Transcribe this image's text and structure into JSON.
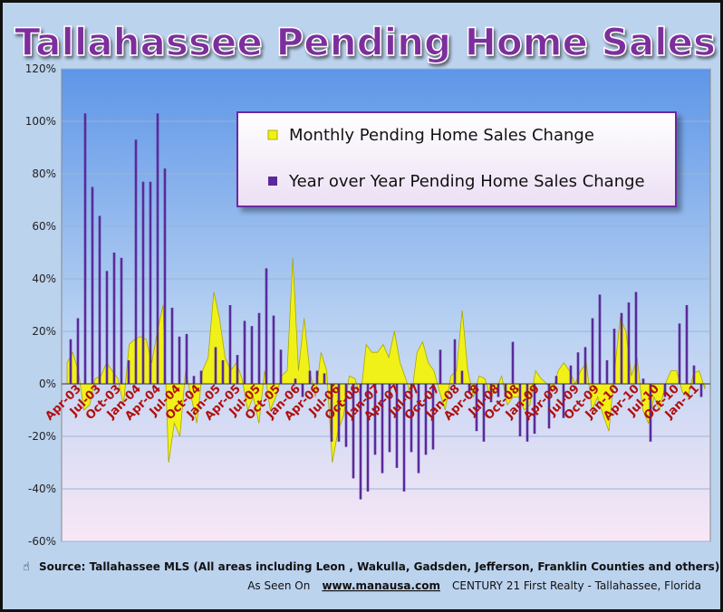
{
  "chart_data": {
    "type": "bar",
    "title": "Tallahassee Pending Home Sales",
    "ylim": [
      -60,
      120
    ],
    "yticks": [
      "-60%",
      "-40%",
      "-20%",
      "0%",
      "20%",
      "40%",
      "60%",
      "80%",
      "100%",
      "120%"
    ],
    "grid": true,
    "legend_placement": "top-right",
    "x_tick_labels": [
      "Apr-03",
      "Jul-03",
      "Oct-03",
      "Jan-04",
      "Apr-04",
      "Jul-04",
      "Oct-04",
      "Jan-05",
      "Apr-05",
      "Jul-05",
      "Oct-05",
      "Jan-06",
      "Apr-06",
      "Jul-06",
      "Oct-06",
      "Jan-07",
      "Apr-07",
      "Jul-07",
      "Oct-07",
      "Jan-08",
      "Apr-08",
      "Jul-08",
      "Oct-08",
      "Jan-09",
      "Apr-09",
      "Jul-09",
      "Oct-09",
      "Jan-10",
      "Apr-10",
      "Jul-10",
      "Oct-10",
      "Jan-11"
    ],
    "series": [
      {
        "name": "Monthly Pending Home Sales Change",
        "type": "area",
        "color": "#f2f20c",
        "values": [
          8,
          12,
          5,
          -10,
          -8,
          2,
          3,
          8,
          5,
          2,
          -8,
          15,
          17,
          18,
          17,
          8,
          20,
          30,
          -30,
          -15,
          -20,
          5,
          -5,
          -15,
          5,
          10,
          35,
          25,
          10,
          5,
          8,
          2,
          -10,
          -5,
          -15,
          5,
          -10,
          -5,
          3,
          5,
          48,
          5,
          25,
          5,
          -5,
          12,
          5,
          -30,
          -18,
          -12,
          3,
          2,
          -5,
          15,
          12,
          12,
          15,
          10,
          20,
          8,
          2,
          -5,
          12,
          16,
          8,
          5,
          -3,
          -10,
          3,
          5,
          28,
          5,
          -5,
          3,
          2,
          -5,
          -2,
          3,
          -8,
          -5,
          -5,
          -10,
          -8,
          5,
          2,
          0,
          -3,
          5,
          8,
          5,
          0,
          5,
          8,
          -10,
          -5,
          -12,
          -18,
          5,
          25,
          20,
          3,
          10,
          -10,
          -15,
          -5,
          -10,
          0,
          5,
          5,
          -3,
          -5,
          4,
          5,
          -2
        ]
      },
      {
        "name": "Year over Year Pending Home Sales Change",
        "type": "bar",
        "color": "#5a2a9a",
        "values": [
          17,
          25,
          103,
          75,
          64,
          43,
          50,
          48,
          9,
          93,
          77,
          77,
          103,
          82,
          29,
          18,
          19,
          3,
          5,
          0,
          14,
          9,
          30,
          11,
          24,
          22,
          27,
          44,
          26,
          13,
          0,
          2,
          -5,
          5,
          5,
          4,
          -22,
          -22,
          -24,
          -36,
          -44,
          -41,
          -27,
          -34,
          -26,
          -32,
          -41,
          -26,
          -34,
          -27,
          -25,
          13,
          0,
          17,
          5,
          -3,
          -18,
          -22,
          -7,
          -5,
          -5,
          16,
          -20,
          -22,
          -19,
          0,
          -17,
          3,
          -13,
          7,
          12,
          14,
          25,
          34,
          9,
          21,
          27,
          31,
          35,
          2,
          -22,
          0,
          -5,
          0,
          23,
          30,
          7,
          -5
        ]
      }
    ]
  },
  "source_note": {
    "icon": "pointing-hand-icon",
    "text": "Source: Tallahassee MLS (All areas including Leon , Wakulla, Gadsden, Jefferson, Franklin Counties and others)"
  },
  "credit": {
    "prefix": "As Seen On",
    "link": "www.manausa.com",
    "suffix": "CENTURY 21 First Realty - Tallahassee, Florida"
  },
  "colors": {
    "plot_top": "#5e96e8",
    "plot_bottom": "#f6e6f4",
    "title_fill": "#7d2e9d",
    "legend_border": "#6a2aa0",
    "xtick_color": "#b01010"
  }
}
